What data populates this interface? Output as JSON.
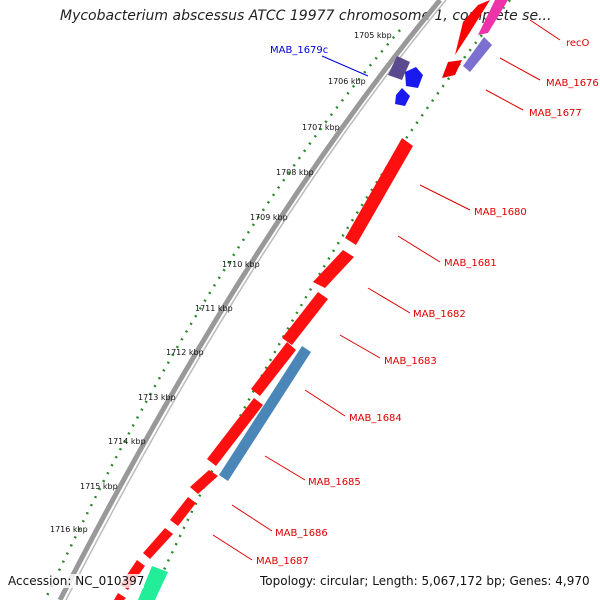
{
  "title": "Mycobacterium abscessus ATCC 19977 chromosome 1, complete se...",
  "footer": {
    "accession": "Accession: NC_010397",
    "info": "Topology: circular; Length: 5,067,172 bp; Genes: 4,970"
  },
  "ticks": [
    "1705 kbp",
    "1706 kbp",
    "1707 kbp",
    "1708 kbp",
    "1709 kbp",
    "1710 kbp",
    "1711 kbp",
    "1712 kbp",
    "1713 kbp",
    "1714 kbp",
    "1715 kbp",
    "1716 kbp"
  ],
  "gene_labels": [
    {
      "name": "MAB_1679c",
      "color": "#0000dd"
    },
    {
      "name": "recO",
      "color": "#dd0000"
    },
    {
      "name": "MAB_1676",
      "color": "#dd0000"
    },
    {
      "name": "MAB_1677",
      "color": "#dd0000"
    },
    {
      "name": "MAB_1680",
      "color": "#dd0000"
    },
    {
      "name": "MAB_1681",
      "color": "#dd0000"
    },
    {
      "name": "MAB_1682",
      "color": "#dd0000"
    },
    {
      "name": "MAB_1683",
      "color": "#dd0000"
    },
    {
      "name": "MAB_1684",
      "color": "#dd0000"
    },
    {
      "name": "MAB_1685",
      "color": "#dd0000"
    },
    {
      "name": "MAB_1686",
      "color": "#dd0000"
    },
    {
      "name": "MAB_1687",
      "color": "#dd0000"
    }
  ],
  "colors": {
    "backbone": "#888888",
    "cds_forward": "#ff0000",
    "cds_reverse_blue": "#1a1aee",
    "feature_steelblue": "#4a86b8",
    "feature_purple": "#7b6fd0",
    "feature_slate": "#5a4a90",
    "feature_magenta": "#ee33aa",
    "feature_green": "#22ee99",
    "tick_dots": "#2a8a2a"
  }
}
